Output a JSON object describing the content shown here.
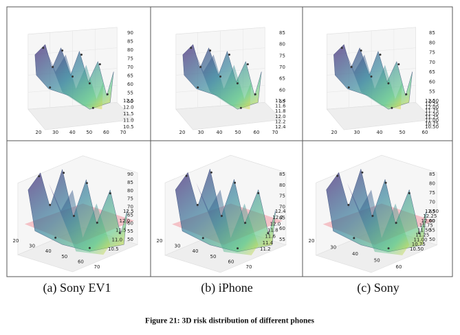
{
  "panels": [
    {
      "zticks": [
        "90",
        "85",
        "80",
        "75",
        "70",
        "65",
        "60",
        "55",
        "50"
      ],
      "yticks": [
        "12.5",
        "12.0",
        "11.5",
        "11.0",
        "10.5"
      ],
      "xticks": [
        "20",
        "30",
        "40",
        "50",
        "60",
        "70"
      ]
    },
    {
      "zticks": [
        "85",
        "80",
        "75",
        "70",
        "65",
        "60",
        "55"
      ],
      "yticks": [
        "11.4",
        "11.6",
        "11.8",
        "12.0",
        "12.2",
        "12.4"
      ],
      "xticks": [
        "20",
        "30",
        "40",
        "50",
        "60",
        "70"
      ]
    },
    {
      "zticks": [
        "85",
        "80",
        "75",
        "70",
        "65",
        "60",
        "55",
        "50"
      ],
      "yticks": [
        "12.50",
        "12.25",
        "12.00",
        "11.75",
        "11.50",
        "11.25",
        "11.00",
        "10.75",
        "10.50"
      ],
      "xticks": [
        "20",
        "30",
        "40",
        "50",
        "60"
      ]
    },
    {
      "zticks": [
        "90",
        "85",
        "80",
        "75",
        "70",
        "65",
        "60",
        "55",
        "50"
      ],
      "yticks": [
        "12.5",
        "12.0",
        "11.5",
        "11.0",
        "10.5"
      ],
      "xticks": [
        "20",
        "30",
        "40",
        "50",
        "60",
        "70"
      ]
    },
    {
      "zticks": [
        "85",
        "80",
        "75",
        "70",
        "65",
        "60",
        "55"
      ],
      "yticks": [
        "12.4",
        "12.2",
        "12.0",
        "11.8",
        "11.6",
        "11.4",
        "11.2"
      ],
      "xticks": [
        "20",
        "30",
        "40",
        "50",
        "60",
        "70"
      ]
    },
    {
      "zticks": [
        "85",
        "80",
        "75",
        "70",
        "65",
        "60",
        "55",
        "50"
      ],
      "yticks": [
        "12.50",
        "12.25",
        "12.00",
        "11.75",
        "11.50",
        "11.25",
        "11.00",
        "10.75",
        "10.50"
      ],
      "xticks": [
        "20",
        "30",
        "40",
        "50",
        "60"
      ]
    }
  ],
  "captions": [
    "(a) Sony EV1",
    "(b) iPhone",
    "(c) Sony"
  ],
  "figure_caption": "Figure 21: 3D risk distribution of different phones"
}
